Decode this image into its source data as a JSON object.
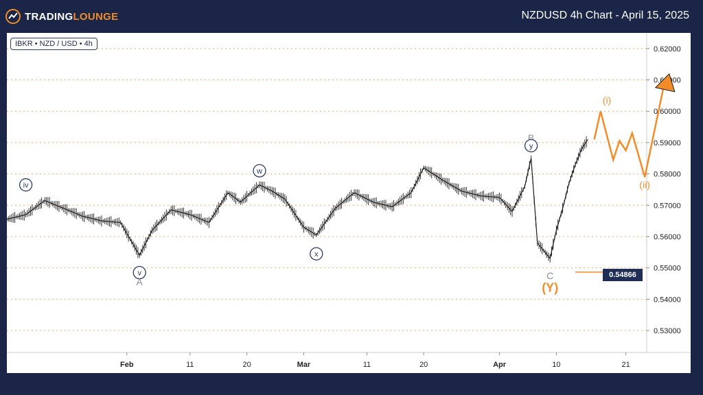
{
  "header": {
    "logo_text_part1": "TRADING",
    "logo_text_part2": "LOUNGE",
    "title": "NZDUSD 4h Chart - April 15, 2025"
  },
  "chart_info_label": "IBKR • NZD / USD • 4h",
  "colors": {
    "background": "#1a2547",
    "accent_orange": "#f28c28",
    "wave_label_navy": "#2a3a66",
    "wave_label_gray": "#8a8f99",
    "price_tag_bg": "#1f2d57"
  },
  "chart_data": {
    "type": "line",
    "title": "NZDUSD 4h Chart - April 15, 2025",
    "y_ticks": [
      "0.53000",
      "0.54000",
      "0.55000",
      "0.56000",
      "0.57000",
      "0.58000",
      "0.59000",
      "0.60000",
      "0.61000",
      "0.62000"
    ],
    "ylim": [
      0.523,
      0.625
    ],
    "x_ticks": [
      "Feb",
      "11",
      "20",
      "Mar",
      "11",
      "20",
      "Apr",
      "10",
      "21"
    ],
    "current_price_label": "0.54866",
    "price_series": {
      "name": "",
      "x": [
        "2025-01-13",
        "2025-01-16",
        "2025-01-19",
        "2025-01-22",
        "2025-01-25",
        "2025-01-28",
        "2025-01-31",
        "2025-02-03",
        "2025-02-05",
        "2025-02-08",
        "2025-02-11",
        "2025-02-14",
        "2025-02-17",
        "2025-02-19",
        "2025-02-22",
        "2025-02-24",
        "2025-02-26",
        "2025-03-01",
        "2025-03-03",
        "2025-03-06",
        "2025-03-09",
        "2025-03-12",
        "2025-03-15",
        "2025-03-18",
        "2025-03-20",
        "2025-03-23",
        "2025-03-26",
        "2025-03-29",
        "2025-04-01",
        "2025-04-03",
        "2025-04-05",
        "2025-04-06",
        "2025-04-07",
        "2025-04-09",
        "2025-04-10",
        "2025-04-11",
        "2025-04-12",
        "2025-04-13",
        "2025-04-14",
        "2025-04-15"
      ],
      "y": [
        0.5655,
        0.567,
        0.5715,
        0.569,
        0.5665,
        0.565,
        0.5645,
        0.554,
        0.562,
        0.5685,
        0.567,
        0.5645,
        0.574,
        0.571,
        0.5765,
        0.5745,
        0.572,
        0.563,
        0.5605,
        0.569,
        0.574,
        0.571,
        0.5695,
        0.574,
        0.582,
        0.578,
        0.5745,
        0.573,
        0.5725,
        0.568,
        0.576,
        0.585,
        0.558,
        0.553,
        0.562,
        0.569,
        0.577,
        0.583,
        0.588,
        0.591
      ]
    },
    "projection_series": {
      "name": "",
      "x": [
        "2025-04-16",
        "2025-04-17",
        "2025-04-19",
        "2025-04-20",
        "2025-04-21",
        "2025-04-22",
        "2025-04-24",
        "2025-04-27"
      ],
      "y": [
        0.591,
        0.6,
        0.5845,
        0.5905,
        0.5875,
        0.593,
        0.579,
        0.608
      ]
    },
    "target_arrow_y": 0.6115,
    "support_line_y": 0.54866,
    "wave_labels": [
      {
        "text": "iv",
        "x": "2025-01-16",
        "y": 0.5765,
        "style": "circled-navy"
      },
      {
        "text": "v",
        "x": "2025-02-03",
        "y": 0.5485,
        "style": "circled-navy"
      },
      {
        "text": "A",
        "x": "2025-02-03",
        "y": 0.5455,
        "style": "gray"
      },
      {
        "text": "w",
        "x": "2025-02-22",
        "y": 0.581,
        "style": "circled-navy"
      },
      {
        "text": "x",
        "x": "2025-03-03",
        "y": 0.5545,
        "style": "circled-navy"
      },
      {
        "text": "B",
        "x": "2025-04-06",
        "y": 0.5915,
        "style": "gray"
      },
      {
        "text": "y",
        "x": "2025-04-06",
        "y": 0.589,
        "style": "circled-navy"
      },
      {
        "text": "C",
        "x": "2025-04-09",
        "y": 0.5475,
        "style": "gray"
      },
      {
        "text": "(Y)",
        "x": "2025-04-09",
        "y": 0.5435,
        "style": "orange-large"
      },
      {
        "text": "(i)",
        "x": "2025-04-18",
        "y": 0.6035,
        "style": "orange"
      },
      {
        "text": "(ii)",
        "x": "2025-04-24",
        "y": 0.5765,
        "style": "orange"
      }
    ]
  }
}
